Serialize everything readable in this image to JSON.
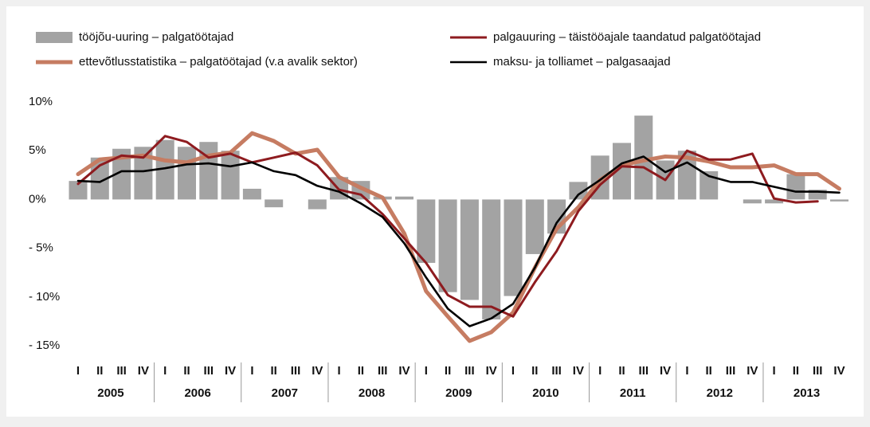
{
  "chart_data": {
    "type": "bar",
    "categories": [
      "I",
      "II",
      "III",
      "IV",
      "I",
      "II",
      "III",
      "IV",
      "I",
      "II",
      "III",
      "IV",
      "I",
      "II",
      "III",
      "IV",
      "I",
      "II",
      "III",
      "IV",
      "I",
      "II",
      "III",
      "IV",
      "I",
      "II",
      "III",
      "IV",
      "I",
      "II",
      "III",
      "IV",
      "I",
      "II",
      "III",
      "IV"
    ],
    "year_labels": [
      "2005",
      "2006",
      "2007",
      "2008",
      "2009",
      "2010",
      "2011",
      "2012",
      "2013"
    ],
    "series": [
      {
        "name": "tööjõu-uuring – palgatöötajad",
        "type": "bar",
        "color": "#a3a3a3",
        "values": [
          1.9,
          4.3,
          5.2,
          5.4,
          6.1,
          5.4,
          5.9,
          5.0,
          1.1,
          -0.8,
          0,
          -1.0,
          2.3,
          1.9,
          0.3,
          0.3,
          -6.5,
          -9.5,
          -10.3,
          -12.3,
          -9.9,
          -5.6,
          -3.5,
          1.8,
          4.5,
          5.8,
          8.6,
          4.0,
          5.0,
          2.9,
          0,
          -0.4,
          -0.4,
          2.6,
          1.0,
          -0.2
        ]
      },
      {
        "name": "palgauuring – täistööajale taandatud palgatöötajad",
        "type": "line",
        "color": "#8e1b1f",
        "values": [
          1.6,
          3.5,
          4.5,
          4.3,
          6.5,
          5.9,
          4.3,
          4.7,
          3.8,
          4.3,
          4.8,
          3.5,
          1.0,
          0.5,
          -1.5,
          -4.0,
          -6.5,
          -9.8,
          -11.0,
          -11.0,
          -12.0,
          -8.5,
          -5.3,
          -1.2,
          1.5,
          3.4,
          3.3,
          2.0,
          5.0,
          4.1,
          4.1,
          4.7,
          0.1,
          -0.3,
          -0.2,
          null
        ]
      },
      {
        "name": "ettevõtlusstatistika  – palgatöötajad (v.a avalik sektor)",
        "type": "line",
        "color": "#c67c62",
        "values": [
          2.6,
          4.1,
          4.3,
          4.5,
          4.0,
          3.8,
          4.5,
          4.8,
          6.8,
          6.0,
          4.7,
          5.1,
          2.3,
          1.2,
          0.2,
          -3.5,
          -9.4,
          -12.0,
          -14.5,
          -13.6,
          -11.6,
          -7.0,
          -3.0,
          -0.8,
          2.0,
          3.5,
          4.0,
          4.4,
          4.3,
          3.9,
          3.3,
          3.3,
          3.5,
          2.6,
          2.6,
          1.1
        ]
      },
      {
        "name": "maksu- ja tolliamet – palgasaajad",
        "type": "line",
        "color": "#000000",
        "values": [
          1.9,
          1.8,
          2.9,
          2.9,
          3.2,
          3.6,
          3.7,
          3.4,
          3.8,
          2.9,
          2.5,
          1.4,
          0.8,
          -0.4,
          -1.8,
          -4.5,
          -8.0,
          -11.2,
          -13.0,
          -12.2,
          -10.7,
          -7.0,
          -2.4,
          0.5,
          2.0,
          3.7,
          4.4,
          2.8,
          3.8,
          2.4,
          1.8,
          1.8,
          1.3,
          0.8,
          0.8,
          0.7
        ]
      }
    ],
    "ylim": [
      -15,
      10
    ],
    "yticks": [
      {
        "value": 10,
        "label": "10%"
      },
      {
        "value": 5,
        "label": "5%"
      },
      {
        "value": 0,
        "label": "0%"
      },
      {
        "value": -5,
        "label": "- 5%"
      },
      {
        "value": -10,
        "label": "- 10%"
      },
      {
        "value": -15,
        "label": "- 15%"
      }
    ],
    "grid": false
  }
}
